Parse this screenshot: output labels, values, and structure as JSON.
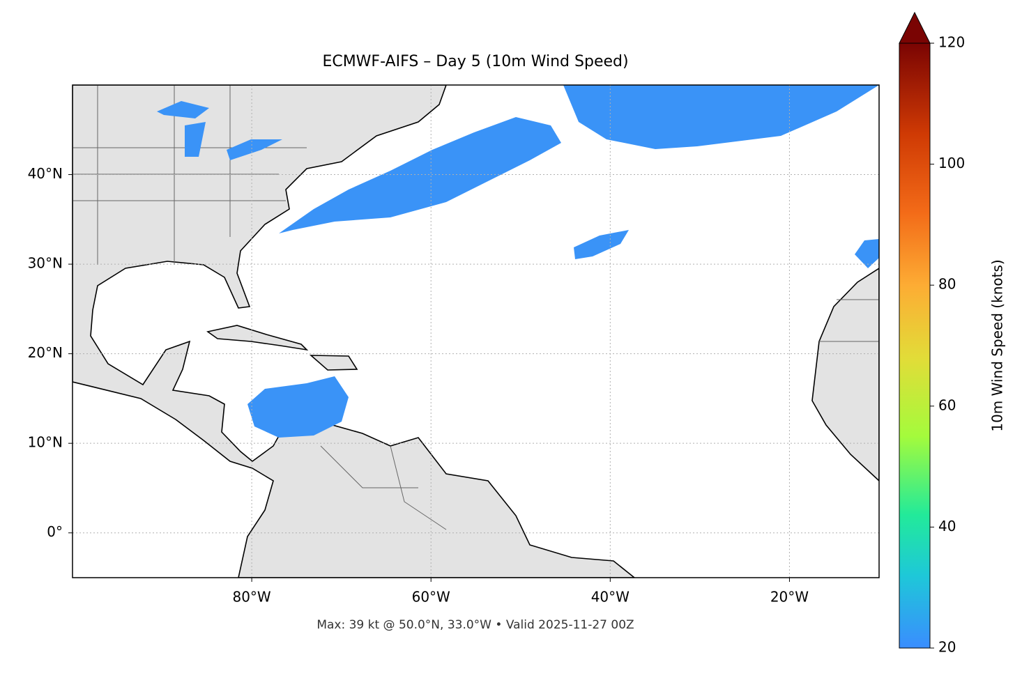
{
  "chart_data": {
    "type": "map",
    "title": "ECMWF-AIFS – Day 5 (10m Wind Speed)",
    "footnote": "Max: 39 kt @ 50.0°N, 33.0°W • Valid 2025-11-27 00Z",
    "xlim": [
      -100,
      -10
    ],
    "ylim": [
      -5,
      50
    ],
    "xticks": [
      {
        "value": -80,
        "label": "80°W"
      },
      {
        "value": -60,
        "label": "60°W"
      },
      {
        "value": -40,
        "label": "40°W"
      },
      {
        "value": -20,
        "label": "20°W"
      }
    ],
    "yticks": [
      {
        "value": 0,
        "label": "0°"
      },
      {
        "value": 10,
        "label": "10°N"
      },
      {
        "value": 20,
        "label": "20°N"
      },
      {
        "value": 30,
        "label": "30°N"
      },
      {
        "value": 40,
        "label": "40°N"
      }
    ],
    "grid": true,
    "colorbar": {
      "label": "10m Wind Speed (knots)",
      "lim": [
        20,
        120
      ],
      "ticks": [
        20,
        40,
        60,
        80,
        100,
        120
      ]
    }
  }
}
